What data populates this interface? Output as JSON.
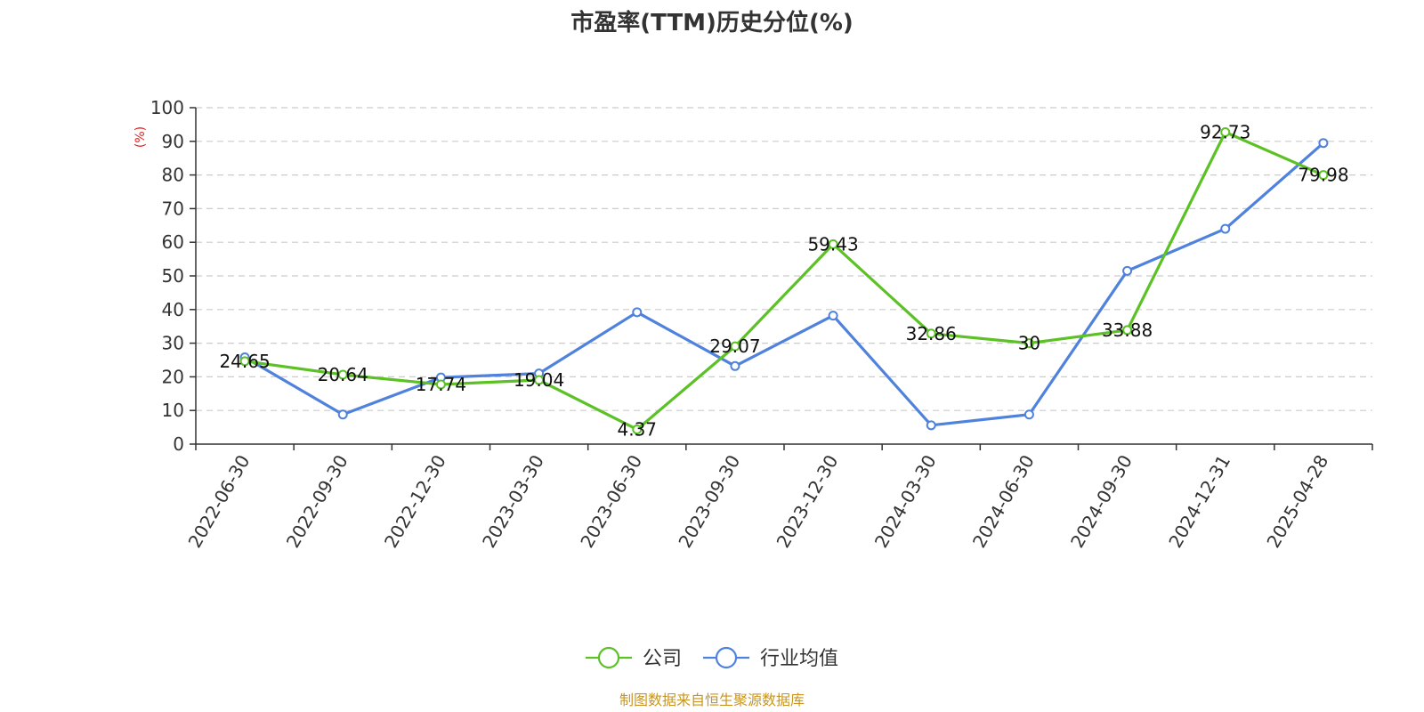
{
  "chart_data": {
    "type": "line",
    "title": "市盈率(TTM)历史分位(%)",
    "ylabel": "(%)",
    "ylim": [
      0,
      100
    ],
    "yticks": [
      0,
      10,
      20,
      30,
      40,
      50,
      60,
      70,
      80,
      90,
      100
    ],
    "grid": true,
    "legend_position": "bottom-center",
    "categories": [
      "2022-06-30",
      "2022-09-30",
      "2022-12-30",
      "2023-03-30",
      "2023-06-30",
      "2023-09-30",
      "2023-12-30",
      "2024-03-30",
      "2024-06-30",
      "2024-09-30",
      "2024-12-31",
      "2025-04-28"
    ],
    "series": [
      {
        "name": "公司",
        "color": "#5cc125",
        "values": [
          24.65,
          20.64,
          17.74,
          19.04,
          4.37,
          29.07,
          59.43,
          32.86,
          30,
          33.88,
          92.73,
          79.98
        ],
        "labels": [
          "24.65",
          "20.64",
          "17.74",
          "19.04",
          "4.37",
          "29.07",
          "59.43",
          "32.86",
          "30",
          "33.88",
          "92.73",
          "79.98"
        ]
      },
      {
        "name": "行业均值",
        "color": "#4f82dd",
        "values": [
          25.8,
          8.8,
          19.8,
          21.0,
          39.2,
          23.2,
          38.2,
          5.6,
          8.8,
          51.5,
          64.0,
          89.5
        ]
      }
    ],
    "source": "制图数据来自恒生聚源数据库",
    "source_color": "#c8961e",
    "unit_color": "#e02020",
    "axis_color": "#333333",
    "grid_color": "#cccccc"
  }
}
